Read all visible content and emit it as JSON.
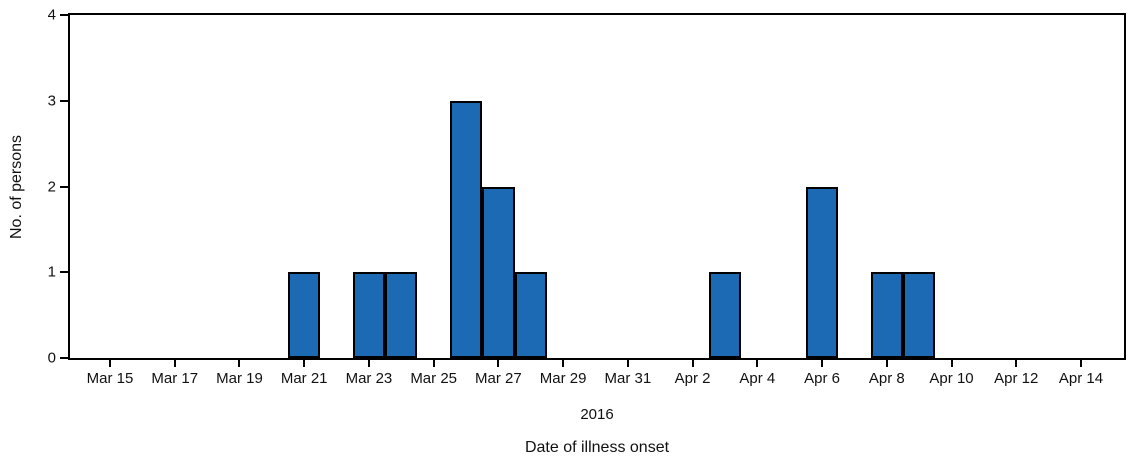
{
  "chart_data": {
    "type": "bar",
    "title": "",
    "ylabel": "No. of persons",
    "xlabel": "Date of illness onset",
    "year_label": "2016",
    "ylim": [
      0,
      4
    ],
    "yticks": [
      0,
      1,
      2,
      3,
      4
    ],
    "x_unit": "day",
    "x_range_days": 30,
    "grid": false,
    "legend": null,
    "bar_color": "#1b6ab3",
    "bar_border_color": "#000000",
    "axis_color": "#000000",
    "x_tick_labels": [
      {
        "label": "Mar 15",
        "day": 0
      },
      {
        "label": "Mar 17",
        "day": 2
      },
      {
        "label": "Mar 19",
        "day": 4
      },
      {
        "label": "Mar 21",
        "day": 6
      },
      {
        "label": "Mar 23",
        "day": 8
      },
      {
        "label": "Mar 25",
        "day": 10
      },
      {
        "label": "Mar 27",
        "day": 12
      },
      {
        "label": "Mar 29",
        "day": 14
      },
      {
        "label": "Mar 31",
        "day": 16
      },
      {
        "label": "Apr 2",
        "day": 18
      },
      {
        "label": "Apr 4",
        "day": 20
      },
      {
        "label": "Apr 6",
        "day": 22
      },
      {
        "label": "Apr 8",
        "day": 24
      },
      {
        "label": "Apr 10",
        "day": 26
      },
      {
        "label": "Apr 12",
        "day": 28
      },
      {
        "label": "Apr 14",
        "day": 30
      }
    ],
    "points": [
      {
        "date": "Mar 21",
        "day": 6,
        "value": 1
      },
      {
        "date": "Mar 23",
        "day": 8,
        "value": 1
      },
      {
        "date": "Mar 24",
        "day": 9,
        "value": 1
      },
      {
        "date": "Mar 26",
        "day": 11,
        "value": 3
      },
      {
        "date": "Mar 27",
        "day": 12,
        "value": 2
      },
      {
        "date": "Mar 28",
        "day": 13,
        "value": 1
      },
      {
        "date": "Apr 3",
        "day": 19,
        "value": 1
      },
      {
        "date": "Apr 6",
        "day": 22,
        "value": 2
      },
      {
        "date": "Apr 8",
        "day": 24,
        "value": 1
      },
      {
        "date": "Apr 9",
        "day": 25,
        "value": 1
      }
    ]
  }
}
